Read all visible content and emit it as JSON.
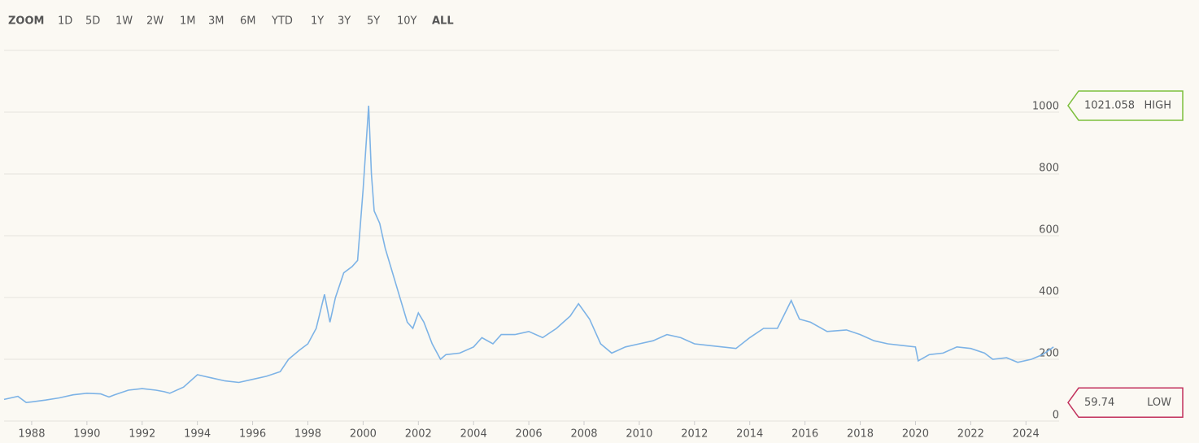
{
  "toolbar": {
    "label": "ZOOM",
    "buttons": [
      "1D",
      "5D",
      "1W",
      "2W",
      "1M",
      "3M",
      "6M",
      "YTD",
      "1Y",
      "3Y",
      "5Y",
      "10Y",
      "ALL"
    ],
    "selected": "ALL"
  },
  "chart_data": {
    "type": "line",
    "color": "#7db3e6",
    "x": [
      1987.0,
      1987.5,
      1987.8,
      1988.0,
      1988.5,
      1989.0,
      1989.5,
      1990.0,
      1990.5,
      1990.8,
      1991.0,
      1991.5,
      1992.0,
      1992.5,
      1992.8,
      1993.0,
      1993.5,
      1994.0,
      1994.5,
      1995.0,
      1995.5,
      1996.0,
      1996.5,
      1997.0,
      1997.3,
      1997.7,
      1998.0,
      1998.3,
      1998.6,
      1998.8,
      1999.0,
      1999.3,
      1999.6,
      1999.8,
      2000.0,
      2000.2,
      2000.3,
      2000.4,
      2000.6,
      2000.8,
      2001.0,
      2001.2,
      2001.4,
      2001.6,
      2001.8,
      2002.0,
      2002.2,
      2002.5,
      2002.8,
      2003.0,
      2003.5,
      2004.0,
      2004.3,
      2004.7,
      2005.0,
      2005.5,
      2006.0,
      2006.5,
      2007.0,
      2007.5,
      2007.8,
      2008.2,
      2008.6,
      2009.0,
      2009.5,
      2010.0,
      2010.5,
      2011.0,
      2011.5,
      2012.0,
      2012.5,
      2013.0,
      2013.5,
      2014.0,
      2014.5,
      2015.0,
      2015.5,
      2015.8,
      2016.2,
      2016.8,
      2017.5,
      2018.0,
      2018.5,
      2019.0,
      2019.5,
      2020.0,
      2020.1,
      2020.5,
      2021.0,
      2021.5,
      2022.0,
      2022.5,
      2022.8,
      2023.3,
      2023.7,
      2024.2,
      2024.6,
      2025.0
    ],
    "values": [
      70,
      80,
      60,
      62,
      68,
      75,
      85,
      90,
      88,
      78,
      85,
      100,
      105,
      100,
      95,
      90,
      110,
      150,
      140,
      130,
      125,
      135,
      145,
      160,
      200,
      230,
      250,
      300,
      410,
      320,
      400,
      480,
      500,
      520,
      750,
      1021.058,
      800,
      680,
      640,
      560,
      500,
      440,
      380,
      320,
      300,
      350,
      320,
      250,
      200,
      215,
      220,
      240,
      270,
      250,
      280,
      280,
      290,
      270,
      300,
      340,
      380,
      330,
      250,
      220,
      240,
      250,
      260,
      280,
      270,
      250,
      245,
      240,
      235,
      270,
      300,
      300,
      390,
      330,
      320,
      290,
      295,
      280,
      260,
      250,
      245,
      240,
      195,
      215,
      220,
      240,
      235,
      220,
      200,
      205,
      190,
      200,
      215,
      240
    ],
    "xlim": [
      1987,
      2025.2
    ],
    "xticks": [
      1988,
      1990,
      1992,
      1994,
      1996,
      1998,
      2000,
      2002,
      2004,
      2006,
      2008,
      2010,
      2012,
      2014,
      2016,
      2018,
      2020,
      2022,
      2024
    ],
    "ylim": [
      0,
      1200
    ],
    "yticks": [
      0,
      200,
      400,
      600,
      800,
      1000
    ],
    "grid": true,
    "high": {
      "value": 1021.058,
      "label": "HIGH",
      "color": "#7cbf3c"
    },
    "low": {
      "value": 59.74,
      "label": "LOW",
      "color": "#c1305c"
    }
  }
}
